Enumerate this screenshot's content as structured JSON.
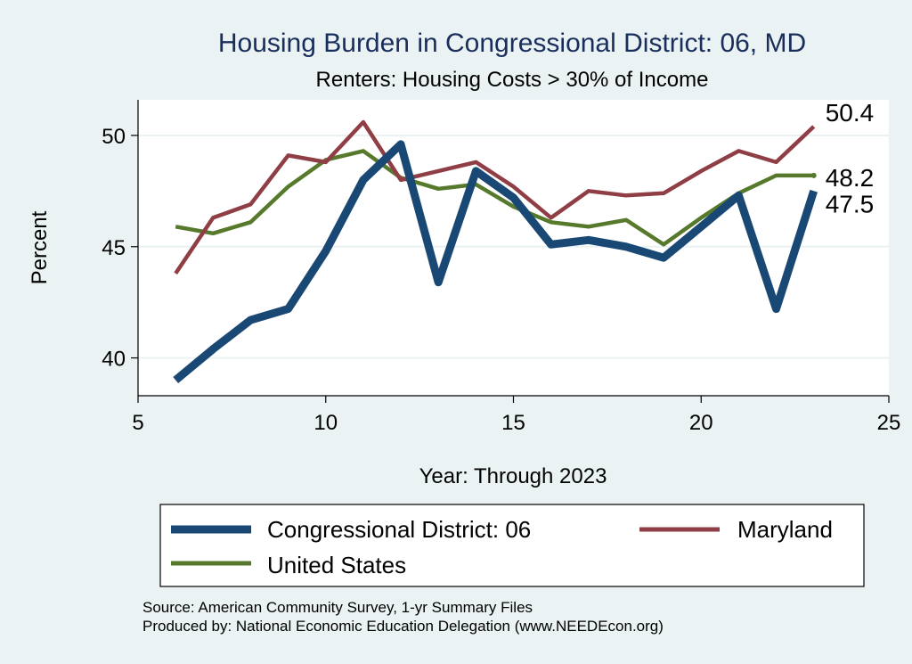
{
  "chart_data": {
    "type": "line",
    "title": "Housing Burden in Congressional District:  06, MD",
    "subtitle": "Renters: Housing Costs > 30% of Income",
    "xlabel": "Year: Through 2023",
    "ylabel": "Percent",
    "xlim": [
      5,
      25
    ],
    "ylim": [
      38.3,
      51.6
    ],
    "xticks": [
      5,
      10,
      15,
      20,
      25
    ],
    "yticks": [
      40,
      45,
      50
    ],
    "grid": true,
    "x": [
      6,
      7,
      8,
      9,
      10,
      11,
      12,
      13,
      14,
      15,
      16,
      17,
      18,
      19,
      20,
      21,
      22,
      23
    ],
    "series": [
      {
        "name": "Congressional District:  06",
        "color": "#1a4874",
        "values": [
          39.0,
          40.4,
          41.7,
          42.2,
          44.8,
          48.0,
          49.6,
          43.4,
          48.4,
          47.2,
          45.1,
          45.3,
          45.0,
          44.5,
          45.9,
          47.3,
          42.2,
          47.5
        ],
        "end_label": "47.5"
      },
      {
        "name": "Maryland",
        "color": "#903e45",
        "values": [
          43.8,
          46.3,
          46.9,
          49.1,
          48.8,
          50.6,
          48.0,
          48.4,
          48.8,
          47.7,
          46.3,
          47.5,
          47.3,
          47.4,
          48.4,
          49.3,
          48.8,
          50.4
        ],
        "end_label": "50.4"
      },
      {
        "name": "United States",
        "color": "#56792c",
        "values": [
          45.9,
          45.6,
          46.1,
          47.7,
          48.9,
          49.3,
          48.1,
          47.6,
          47.8,
          46.8,
          46.1,
          45.9,
          46.2,
          45.1,
          46.3,
          47.4,
          48.2,
          48.2
        ],
        "end_label": "48.2"
      }
    ],
    "legend": {
      "position": "bottom",
      "entries": [
        "Congressional District:  06",
        "Maryland",
        "United States"
      ]
    }
  },
  "source_line": "Source: American Community Survey, 1-yr Summary Files",
  "produced_line": "Produced by: National Economic Education Delegation (www.NEEDEcon.org)"
}
